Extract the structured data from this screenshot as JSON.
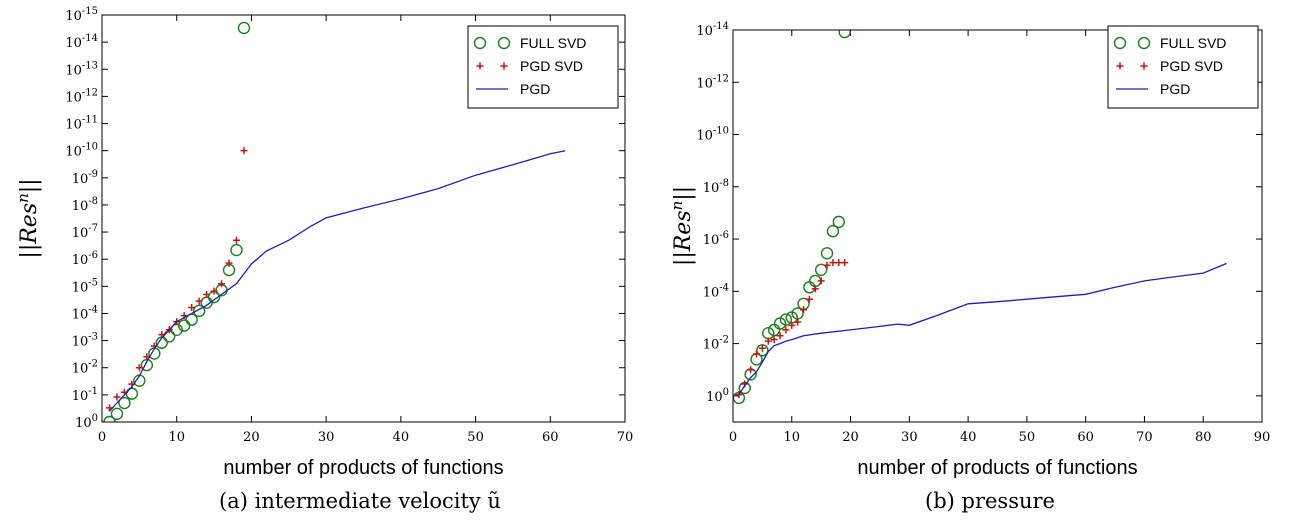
{
  "chart_data": [
    {
      "type": "line",
      "caption": "(a) intermediate velocity ũ",
      "xlabel": "number of products of functions",
      "ylabel": "||Res^n||",
      "xlim": [
        0,
        70
      ],
      "ylim_exp": [
        -15,
        0
      ],
      "yscale": "log",
      "xticks": [
        0,
        10,
        20,
        30,
        40,
        50,
        60,
        70
      ],
      "yticks_exp": [
        0,
        -1,
        -2,
        -3,
        -4,
        -5,
        -6,
        -7,
        -8,
        -9,
        -10,
        -11,
        -12,
        -13,
        -14,
        -15
      ],
      "legend": {
        "position": "top-right",
        "entries": [
          "FULL SVD",
          "PGD SVD",
          "PGD"
        ]
      },
      "series": [
        {
          "name": "FULL SVD",
          "marker": "circle",
          "color": "#1a7f1a",
          "x": [
            1,
            2,
            3,
            4,
            5,
            6,
            7,
            8,
            9,
            10,
            11,
            12,
            13,
            14,
            15,
            16,
            17,
            18,
            19
          ],
          "y": [
            1.0,
            0.5,
            0.2,
            0.09,
            0.03,
            0.008,
            0.003,
            0.0012,
            0.0007,
            0.0004,
            0.00028,
            0.00017,
            8e-05,
            4e-05,
            2.5e-05,
            1.4e-05,
            2.5e-06,
            4.6e-07,
            3e-15
          ]
        },
        {
          "name": "PGD SVD",
          "marker": "plus",
          "color": "#cc1111",
          "x": [
            1,
            2,
            3,
            4,
            5,
            6,
            7,
            8,
            9,
            10,
            11,
            12,
            13,
            14,
            15,
            16,
            17,
            18,
            19
          ],
          "y": [
            0.3,
            0.12,
            0.08,
            0.04,
            0.01,
            0.004,
            0.0016,
            0.0006,
            0.0004,
            0.0002,
            0.00012,
            6e-05,
            3.5e-05,
            2e-05,
            1.5e-05,
            8e-06,
            1.4e-06,
            2e-07,
            1e-10
          ]
        },
        {
          "name": "PGD",
          "marker": "line",
          "color": "#1f1fb4",
          "x": [
            1,
            2,
            3,
            4,
            5,
            6,
            7,
            8,
            9,
            10,
            12,
            14,
            16,
            18,
            20,
            22,
            25,
            28,
            30,
            35,
            40,
            45,
            50,
            55,
            60,
            62
          ],
          "y": [
            0.4,
            0.2,
            0.1,
            0.05,
            0.02,
            0.006,
            0.002,
            0.0008,
            0.0004,
            0.0002,
            0.0001,
            5e-05,
            2e-05,
            8e-06,
            1.5e-06,
            5e-07,
            2e-07,
            6e-08,
            3e-08,
            1.3e-08,
            6e-09,
            2.5e-09,
            8e-10,
            3.3e-10,
            1.3e-10,
            1e-10
          ]
        }
      ]
    },
    {
      "type": "line",
      "caption": "(b) pressure",
      "xlabel": "number of products of functions",
      "ylabel": "||Res^n||",
      "xlim": [
        0,
        90
      ],
      "ylim_exp": [
        -14,
        1
      ],
      "yscale": "log",
      "xticks": [
        0,
        10,
        20,
        30,
        40,
        50,
        60,
        70,
        80,
        90
      ],
      "yticks_exp": [
        0,
        -2,
        -4,
        -6,
        -8,
        -10,
        -12,
        -14
      ],
      "legend": {
        "position": "top-right",
        "entries": [
          "FULL SVD",
          "PGD SVD",
          "PGD"
        ]
      },
      "series": [
        {
          "name": "FULL SVD",
          "marker": "circle",
          "color": "#1a7f1a",
          "x": [
            1,
            2,
            3,
            4,
            5,
            6,
            7,
            8,
            9,
            10,
            11,
            12,
            13,
            14,
            15,
            16,
            17,
            18,
            19
          ],
          "y": [
            1.2,
            0.5,
            0.15,
            0.04,
            0.018,
            0.004,
            0.003,
            0.0017,
            0.0012,
            0.001,
            0.0007,
            0.0003,
            7e-05,
            4e-05,
            1.5e-05,
            3.5e-06,
            5e-07,
            2.2e-07,
            1.2e-14
          ]
        },
        {
          "name": "PGD SVD",
          "marker": "plus",
          "color": "#cc1111",
          "x": [
            1,
            2,
            3,
            4,
            5,
            6,
            7,
            8,
            9,
            10,
            11,
            12,
            13,
            14,
            15,
            16,
            17,
            18,
            19
          ],
          "y": [
            0.9,
            0.35,
            0.1,
            0.025,
            0.015,
            0.008,
            0.007,
            0.005,
            0.003,
            0.002,
            0.0015,
            0.0005,
            0.0002,
            8e-05,
            4e-05,
            1e-05,
            8e-06,
            8e-06,
            8e-06
          ]
        },
        {
          "name": "PGD",
          "marker": "line",
          "color": "#1f1fb4",
          "x": [
            1,
            2,
            3,
            4,
            5,
            6,
            7,
            8,
            9,
            10,
            12,
            15,
            20,
            25,
            28,
            30,
            35,
            40,
            45,
            50,
            55,
            60,
            65,
            70,
            75,
            80,
            84
          ],
          "y": [
            0.9,
            0.4,
            0.2,
            0.12,
            0.05,
            0.02,
            0.012,
            0.01,
            0.008,
            0.007,
            0.005,
            0.004,
            0.003,
            0.0022,
            0.0018,
            0.002,
            0.0008,
            0.0003,
            0.00025,
            0.0002,
            0.00016,
            0.00013,
            7e-05,
            4e-05,
            2.8e-05,
            2e-05,
            8.5e-06
          ]
        }
      ]
    }
  ]
}
